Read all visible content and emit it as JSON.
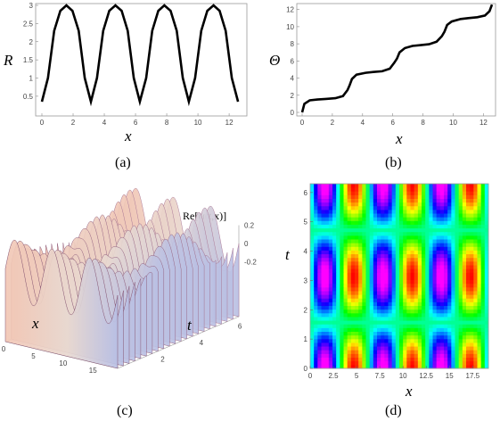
{
  "chart_data": [
    {
      "id": "a",
      "type": "line",
      "caption": "(a)",
      "xlabel": "x",
      "ylabel": "R",
      "xlim": [
        0,
        12.566
      ],
      "ylim": [
        0.35,
        3.0
      ],
      "xticks": [
        0,
        2,
        4,
        6,
        8,
        10,
        12
      ],
      "yticks": [
        0.5,
        1,
        1.5,
        2,
        2.5,
        3
      ],
      "ytick_labels": [
        "0.5",
        "1",
        "1.5",
        "2",
        "2.5",
        "3"
      ],
      "points": [
        [
          0,
          0.35
        ],
        [
          0.39,
          1.0
        ],
        [
          0.79,
          2.3
        ],
        [
          1.18,
          2.85
        ],
        [
          1.57,
          3.0
        ],
        [
          1.96,
          2.85
        ],
        [
          2.36,
          2.3
        ],
        [
          2.75,
          1.0
        ],
        [
          3.14,
          0.35
        ],
        [
          3.53,
          1.0
        ],
        [
          3.93,
          2.3
        ],
        [
          4.32,
          2.85
        ],
        [
          4.71,
          3.0
        ],
        [
          5.11,
          2.85
        ],
        [
          5.5,
          2.3
        ],
        [
          5.89,
          1.0
        ],
        [
          6.28,
          0.35
        ],
        [
          6.68,
          1.0
        ],
        [
          7.07,
          2.3
        ],
        [
          7.46,
          2.85
        ],
        [
          7.85,
          3.0
        ],
        [
          8.25,
          2.85
        ],
        [
          8.64,
          2.3
        ],
        [
          9.03,
          1.0
        ],
        [
          9.42,
          0.35
        ],
        [
          9.82,
          1.0
        ],
        [
          10.21,
          2.3
        ],
        [
          10.6,
          2.85
        ],
        [
          11.0,
          3.0
        ],
        [
          11.39,
          2.85
        ],
        [
          11.78,
          2.3
        ],
        [
          12.17,
          1.0
        ],
        [
          12.57,
          0.35
        ]
      ]
    },
    {
      "id": "b",
      "type": "line",
      "caption": "(b)",
      "xlabel": "x",
      "ylabel": "Θ",
      "xlim": [
        0,
        12.566
      ],
      "ylim": [
        0,
        12.8
      ],
      "xticks": [
        0,
        2,
        4,
        6,
        8,
        10,
        12
      ],
      "yticks": [
        0,
        2,
        4,
        6,
        8,
        10,
        12
      ],
      "points": [
        [
          0,
          0
        ],
        [
          0.15,
          1.0
        ],
        [
          0.5,
          1.4
        ],
        [
          1.0,
          1.5
        ],
        [
          1.57,
          1.57
        ],
        [
          2.2,
          1.65
        ],
        [
          2.7,
          1.9
        ],
        [
          3.0,
          2.6
        ],
        [
          3.14,
          3.14
        ],
        [
          3.3,
          3.9
        ],
        [
          3.6,
          4.4
        ],
        [
          4.2,
          4.62
        ],
        [
          4.71,
          4.71
        ],
        [
          5.3,
          4.8
        ],
        [
          5.8,
          5.1
        ],
        [
          6.1,
          5.8
        ],
        [
          6.28,
          6.28
        ],
        [
          6.45,
          7.0
        ],
        [
          6.8,
          7.5
        ],
        [
          7.3,
          7.75
        ],
        [
          7.85,
          7.85
        ],
        [
          8.4,
          7.95
        ],
        [
          8.9,
          8.25
        ],
        [
          9.25,
          8.9
        ],
        [
          9.42,
          9.42
        ],
        [
          9.6,
          10.2
        ],
        [
          9.9,
          10.6
        ],
        [
          10.5,
          10.9
        ],
        [
          11.0,
          11.0
        ],
        [
          11.6,
          11.1
        ],
        [
          12.1,
          11.3
        ],
        [
          12.4,
          11.8
        ],
        [
          12.566,
          12.57
        ]
      ]
    },
    {
      "id": "c",
      "type": "surface",
      "caption": "(c)",
      "title": "Re[ψ(t,x)]",
      "xlabel": "x",
      "ylabel": "t",
      "xticks": [
        0,
        5,
        10,
        15
      ],
      "yticks": [
        2,
        4,
        6
      ],
      "zticks": [
        0.2,
        0,
        -0.2
      ],
      "ztick_labels": [
        "0.2",
        "0",
        "-0.2"
      ],
      "xlim": [
        0,
        18.85
      ],
      "tlim": [
        0,
        6.28
      ],
      "zlim": [
        -0.3,
        0.3
      ]
    },
    {
      "id": "d",
      "type": "heatmap",
      "caption": "(d)",
      "xlabel": "x",
      "ylabel": "t",
      "xlim": [
        0,
        19.2
      ],
      "ylim": [
        0,
        6.3
      ],
      "xticks": [
        0,
        2.5,
        5,
        7.5,
        10,
        12.5,
        15,
        17.5
      ],
      "xtick_labels": [
        "0",
        "2.5",
        "5",
        "7.5",
        "10",
        "12.5",
        "15",
        "17.5"
      ],
      "yticks": [
        0,
        1,
        2,
        3,
        4,
        5,
        6
      ],
      "colormap": [
        "#ff0000",
        "#ffcc00",
        "#66ff33",
        "#00ffff",
        "#0000ff",
        "#ff00ff"
      ]
    }
  ]
}
